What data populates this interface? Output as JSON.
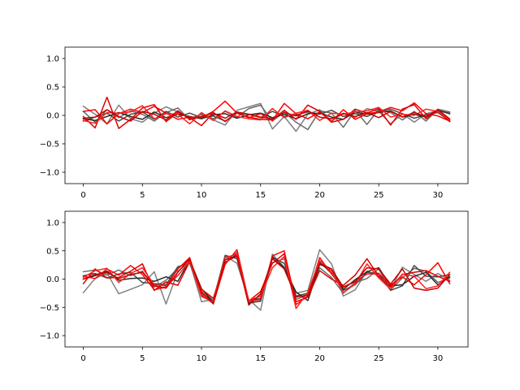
{
  "figure": {
    "background": "#ffffff"
  },
  "chart_data": [
    {
      "type": "line",
      "title": "",
      "xlabel": "",
      "ylabel": "",
      "xlim": [
        -1.55,
        32.55
      ],
      "ylim": [
        -1.2,
        1.2
      ],
      "x_ticks": [
        0,
        5,
        10,
        15,
        20,
        25,
        30
      ],
      "y_ticks": [
        -1.0,
        -0.5,
        0.0,
        0.5,
        1.0
      ],
      "x_tick_labels": [
        "0",
        "5",
        "10",
        "15",
        "20",
        "25",
        "30"
      ],
      "y_tick_labels": [
        "−1.0",
        "−0.5",
        "0.0",
        "0.5",
        "1.0"
      ],
      "grid": false,
      "x": [
        0,
        1,
        2,
        3,
        4,
        5,
        6,
        7,
        8,
        9,
        10,
        11,
        12,
        13,
        14,
        15,
        16,
        17,
        18,
        19,
        20,
        21,
        22,
        23,
        24,
        25,
        26,
        27,
        28,
        29,
        30,
        31
      ],
      "series": [
        {
          "color": "#808080",
          "values": [
            0.16,
            0.02,
            -0.15,
            0.18,
            -0.06,
            -0.12,
            0.04,
            0.15,
            0.06,
            -0.05,
            0.01,
            -0.08,
            -0.17,
            0.09,
            0.15,
            0.21,
            -0.24,
            -0.02,
            -0.28,
            0.02,
            0.1,
            -0.1,
            0.04,
            -0.04,
            0.12,
            0.07,
            -0.15,
            0.03,
            -0.12,
            0.03,
            0.08,
            0.04
          ]
        },
        {
          "color": "#6a6a6a",
          "values": [
            0.07,
            -0.12,
            0.1,
            -0.04,
            0.08,
            0.02,
            -0.1,
            0.05,
            0.13,
            -0.08,
            0.03,
            -0.06,
            0.07,
            -0.03,
            0.12,
            0.18,
            -0.1,
            0.06,
            -0.12,
            -0.25,
            0.08,
            0.04,
            -0.21,
            0.09,
            -0.16,
            0.11,
            0.05,
            -0.08,
            0.07,
            -0.1,
            0.11,
            0.06
          ]
        },
        {
          "color": "#4a4a4a",
          "values": [
            -0.1,
            -0.03,
            0.04,
            -0.1,
            0.02,
            0.06,
            -0.07,
            0.07,
            -0.03,
            0.04,
            -0.04,
            -0.01,
            -0.1,
            0.04,
            0.02,
            -0.04,
            0.07,
            -0.02,
            0.01,
            0.06,
            0.02,
            0.09,
            -0.02,
            0.03,
            -0.02,
            0.08,
            0.11,
            0.03,
            -0.05,
            0.01,
            0.05,
            -0.1
          ]
        },
        {
          "color": "#2a2a2a",
          "values": [
            -0.06,
            -0.09,
            -0.02,
            0.05,
            -0.02,
            -0.07,
            0.06,
            -0.04,
            0.02,
            -0.02,
            -0.06,
            0.01,
            0.03,
            -0.05,
            0.01,
            0.04,
            -0.04,
            0.02,
            -0.06,
            0.03,
            0.04,
            -0.03,
            -0.07,
            0.06,
            0.02,
            0.05,
            0.08,
            -0.03,
            0.02,
            -0.03,
            0.09,
            0.03
          ]
        },
        {
          "color": "#ff0000",
          "values": [
            0.07,
            0.1,
            -0.15,
            0.03,
            0.11,
            0.05,
            0.16,
            0.04,
            -0.07,
            -0.03,
            -0.04,
            0.07,
            0.25,
            0.04,
            -0.04,
            0.03,
            -0.09,
            0.21,
            0.03,
            -0.06,
            0.06,
            -0.11,
            0.1,
            -0.07,
            0.03,
            0.06,
            0.14,
            0.08,
            0.22,
            0.03,
            -0.01,
            -0.1
          ]
        },
        {
          "color": "#e00000",
          "values": [
            -0.02,
            -0.22,
            0.32,
            -0.23,
            -0.07,
            0.13,
            0.19,
            -0.11,
            0.05,
            -0.04,
            -0.18,
            0.05,
            -0.11,
            0.04,
            -0.03,
            -0.07,
            -0.08,
            0.09,
            -0.07,
            0.18,
            0.07,
            -0.12,
            -0.07,
            0.11,
            0.04,
            0.12,
            -0.17,
            0.11,
            0.19,
            -0.06,
            0.08,
            -0.11
          ]
        },
        {
          "color": "#ff2020",
          "values": [
            -0.09,
            -0.14,
            0.05,
            0.04,
            0.06,
            0.17,
            -0.06,
            0.03,
            0.02,
            -0.15,
            0.05,
            -0.09,
            0.08,
            -0.02,
            -0.06,
            -0.08,
            0.12,
            -0.04,
            0.04,
            0.09,
            -0.09,
            0.04,
            0.02,
            0.06,
            0.08,
            0.14,
            -0.03,
            0.02,
            0.0,
            0.11,
            0.07,
            -0.08
          ]
        },
        {
          "color": "#cc0000",
          "values": [
            -0.05,
            -0.03,
            0.1,
            -0.02,
            -0.1,
            0.07,
            0.02,
            -0.08,
            0.08,
            -0.07,
            -0.02,
            0.04,
            -0.05,
            0.06,
            0.02,
            -0.03,
            -0.06,
            0.05,
            -0.01,
            0.08,
            -0.03,
            -0.06,
            0.03,
            -0.02,
            0.05,
            -0.04,
            0.07,
            -0.03,
            0.05,
            -0.02,
            0.1,
            -0.06
          ]
        }
      ]
    },
    {
      "type": "line",
      "title": "",
      "xlabel": "",
      "ylabel": "",
      "xlim": [
        -1.55,
        32.55
      ],
      "ylim": [
        -1.2,
        1.2
      ],
      "x_ticks": [
        0,
        5,
        10,
        15,
        20,
        25,
        30
      ],
      "y_ticks": [
        -1.0,
        -0.5,
        0.0,
        0.5,
        1.0
      ],
      "x_tick_labels": [
        "0",
        "5",
        "10",
        "15",
        "20",
        "25",
        "30"
      ],
      "y_tick_labels": [
        "−1.0",
        "−0.5",
        "0.0",
        "0.5",
        "1.0"
      ],
      "grid": false,
      "x": [
        0,
        1,
        2,
        3,
        4,
        5,
        6,
        7,
        8,
        9,
        10,
        11,
        12,
        13,
        14,
        15,
        16,
        17,
        18,
        19,
        20,
        21,
        22,
        23,
        24,
        25,
        26,
        27,
        28,
        29,
        30,
        31
      ],
      "series": [
        {
          "color": "#808080",
          "values": [
            -0.24,
            0.01,
            0.11,
            -0.26,
            -0.18,
            -0.1,
            0.13,
            -0.44,
            0.14,
            0.3,
            -0.4,
            -0.36,
            0.41,
            0.28,
            -0.36,
            -0.55,
            0.44,
            0.21,
            -0.25,
            -0.2,
            0.52,
            0.27,
            -0.3,
            -0.19,
            0.14,
            0.06,
            -0.18,
            0.21,
            0.08,
            -0.04,
            0.1,
            -0.02
          ]
        },
        {
          "color": "#6a6a6a",
          "values": [
            0.13,
            0.16,
            0.07,
            0.16,
            0.06,
            0.14,
            -0.14,
            -0.02,
            0.19,
            0.34,
            -0.18,
            -0.38,
            0.34,
            0.47,
            -0.44,
            -0.27,
            0.29,
            0.36,
            -0.36,
            -0.28,
            0.2,
            0.03,
            -0.25,
            -0.06,
            0.01,
            0.18,
            -0.19,
            0.02,
            0.19,
            0.14,
            -0.06,
            0.02
          ]
        },
        {
          "color": "#4a4a4a",
          "values": [
            0.06,
            0.1,
            0.02,
            0.09,
            0.12,
            -0.06,
            -0.08,
            -0.1,
            0.22,
            0.28,
            -0.25,
            -0.4,
            0.42,
            0.36,
            -0.38,
            -0.34,
            0.38,
            0.28,
            -0.3,
            -0.25,
            0.3,
            0.1,
            -0.2,
            -0.1,
            0.12,
            0.1,
            -0.2,
            -0.12,
            0.24,
            0.05,
            0.04,
            0.08
          ]
        },
        {
          "color": "#2a2a2a",
          "values": [
            0.0,
            0.06,
            0.14,
            -0.02,
            0.01,
            0.02,
            -0.04,
            0.04,
            -0.04,
            0.34,
            -0.17,
            -0.42,
            0.29,
            0.44,
            -0.42,
            -0.39,
            0.4,
            0.2,
            -0.23,
            -0.38,
            0.26,
            0.18,
            -0.18,
            -0.01,
            0.13,
            0.2,
            -0.12,
            -0.1,
            0.05,
            0.12,
            -0.1,
            0.04
          ]
        },
        {
          "color": "#ff0000",
          "values": [
            0.05,
            0.01,
            0.18,
            0.07,
            0.24,
            0.08,
            -0.19,
            -0.14,
            0.18,
            0.38,
            -0.28,
            -0.43,
            0.26,
            0.52,
            -0.39,
            -0.36,
            0.41,
            0.5,
            -0.45,
            -0.3,
            0.38,
            0.09,
            -0.14,
            -0.04,
            0.09,
            0.1,
            -0.11,
            0.04,
            -0.1,
            0.08,
            0.29,
            -0.08
          ]
        },
        {
          "color": "#e00000",
          "values": [
            -0.08,
            0.18,
            0.02,
            0.03,
            0.14,
            0.27,
            -0.2,
            -0.05,
            -0.11,
            0.31,
            -0.18,
            -0.34,
            0.3,
            0.41,
            -0.39,
            -0.22,
            0.28,
            0.45,
            -0.4,
            -0.32,
            0.15,
            0.0,
            -0.11,
            0.07,
            0.36,
            0.05,
            -0.14,
            0.08,
            0.12,
            0.15,
            0.05,
            -0.04
          ]
        },
        {
          "color": "#ff2020",
          "values": [
            0.03,
            0.15,
            0.19,
            -0.06,
            0.1,
            0.2,
            -0.1,
            -0.12,
            0.06,
            0.32,
            -0.31,
            -0.4,
            0.38,
            0.44,
            -0.38,
            -0.3,
            0.2,
            0.4,
            -0.52,
            -0.23,
            0.33,
            0.14,
            -0.24,
            -0.09,
            0.27,
            0.02,
            -0.18,
            0.09,
            0.05,
            -0.17,
            -0.12,
            0.12
          ]
        },
        {
          "color": "#cc0000",
          "values": [
            0.0,
            0.08,
            0.12,
            0.01,
            0.08,
            0.12,
            -0.12,
            -0.16,
            0.12,
            0.36,
            -0.22,
            -0.44,
            0.34,
            0.4,
            -0.46,
            -0.26,
            0.36,
            0.18,
            -0.32,
            -0.28,
            0.28,
            0.18,
            -0.14,
            -0.05,
            0.2,
            0.18,
            -0.09,
            0.18,
            -0.16,
            -0.2,
            -0.16,
            0.08
          ]
        }
      ]
    }
  ]
}
